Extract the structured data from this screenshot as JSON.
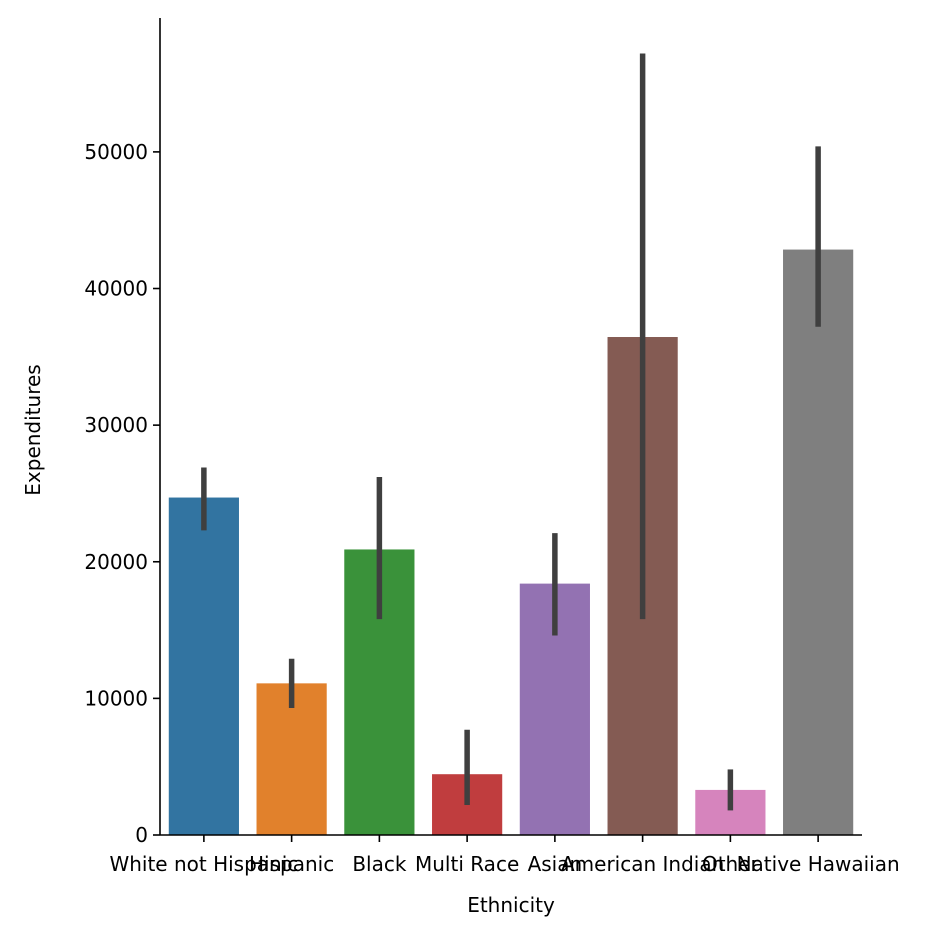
{
  "chart_data": {
    "type": "bar",
    "title": "",
    "xlabel": "Ethnicity",
    "ylabel": "Expenditures",
    "ylim": [
      0,
      59800
    ],
    "yticks": [
      0,
      10000,
      20000,
      30000,
      40000,
      50000
    ],
    "grid": false,
    "categories": [
      "White not Hispanic",
      "Hispanic",
      "Black",
      "Multi Race",
      "Asian",
      "American Indian",
      "Other",
      "Native Hawaiian"
    ],
    "values": [
      24700,
      11100,
      20900,
      4450,
      18400,
      36450,
      3300,
      42850
    ],
    "ci_low": [
      22300,
      9300,
      15800,
      2200,
      14600,
      15800,
      1800,
      37200
    ],
    "ci_high": [
      26900,
      12900,
      26200,
      7700,
      22100,
      57200,
      4800,
      50400
    ],
    "colors": [
      "#3274a1",
      "#e1812c",
      "#3a923a",
      "#c03d3e",
      "#9372b2",
      "#845b53",
      "#d684bd",
      "#7f7f7f"
    ],
    "error_color": "#3f3f3f"
  }
}
